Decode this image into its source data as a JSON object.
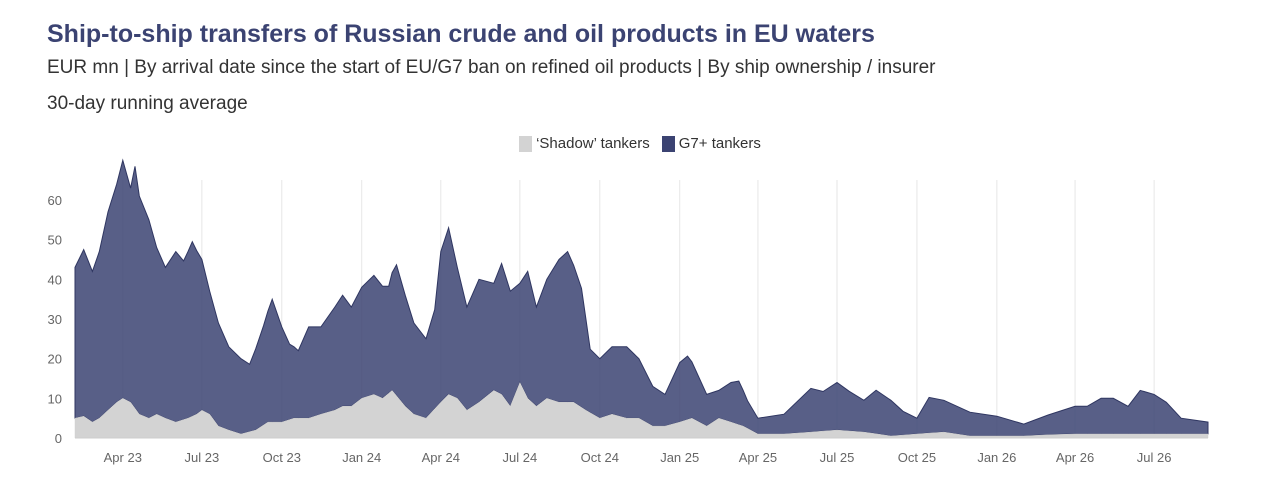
{
  "title": "Ship-to-ship transfers of Russian crude and oil products in EU waters",
  "subtitle": "EUR mn | By arrival date since the start of EU/G7 ban on refined oil products | By ship ownership / insurer",
  "note": "30-day running average",
  "legend": [
    {
      "name": "‘Shadow’ tankers",
      "color": "#d3d3d3"
    },
    {
      "name": "G7+ tankers",
      "color": "#3b4372"
    }
  ],
  "chart_data": {
    "type": "area",
    "stacked": true,
    "x_start": "2023-02-05",
    "x_end": "2026-09-01",
    "ylim": [
      0,
      65
    ],
    "y_ticks": [
      0,
      10,
      20,
      30,
      40,
      50,
      60
    ],
    "x_ticks": [
      {
        "date": "2023-04-01",
        "label": "Apr 23"
      },
      {
        "date": "2023-07-01",
        "label": "Jul 23"
      },
      {
        "date": "2023-10-01",
        "label": "Oct 23"
      },
      {
        "date": "2024-01-01",
        "label": "Jan 24"
      },
      {
        "date": "2024-04-01",
        "label": "Apr 24"
      },
      {
        "date": "2024-07-01",
        "label": "Jul 24"
      },
      {
        "date": "2024-10-01",
        "label": "Oct 24"
      },
      {
        "date": "2025-01-01",
        "label": "Jan 25"
      },
      {
        "date": "2025-04-01",
        "label": "Apr 25"
      },
      {
        "date": "2025-07-01",
        "label": "Jul 25"
      },
      {
        "date": "2025-10-01",
        "label": "Oct 25"
      },
      {
        "date": "2026-01-01",
        "label": "Jan 26"
      },
      {
        "date": "2026-04-01",
        "label": "Apr 26"
      },
      {
        "date": "2026-07-01",
        "label": "Jul 26"
      }
    ],
    "grid": true,
    "legend_position": "top-center",
    "series": [
      {
        "name": "‘Shadow’ tankers",
        "color": "#d3d3d3",
        "points": [
          [
            "2023-02-05",
            5
          ],
          [
            "2023-02-15",
            5.5
          ],
          [
            "2023-02-25",
            4
          ],
          [
            "2023-03-05",
            5
          ],
          [
            "2023-03-15",
            7
          ],
          [
            "2023-03-25",
            9
          ],
          [
            "2023-04-01",
            10
          ],
          [
            "2023-04-10",
            9
          ],
          [
            "2023-04-20",
            6
          ],
          [
            "2023-05-01",
            5
          ],
          [
            "2023-05-10",
            6
          ],
          [
            "2023-05-20",
            5
          ],
          [
            "2023-06-01",
            4
          ],
          [
            "2023-06-15",
            5
          ],
          [
            "2023-06-25",
            6
          ],
          [
            "2023-07-01",
            7
          ],
          [
            "2023-07-10",
            6
          ],
          [
            "2023-07-20",
            3
          ],
          [
            "2023-08-01",
            2
          ],
          [
            "2023-08-15",
            1
          ],
          [
            "2023-09-01",
            2
          ],
          [
            "2023-09-15",
            4
          ],
          [
            "2023-10-01",
            4
          ],
          [
            "2023-10-15",
            5
          ],
          [
            "2023-11-01",
            5
          ],
          [
            "2023-11-15",
            6
          ],
          [
            "2023-12-01",
            7
          ],
          [
            "2023-12-10",
            8
          ],
          [
            "2023-12-20",
            8
          ],
          [
            "2024-01-01",
            10
          ],
          [
            "2024-01-15",
            11
          ],
          [
            "2024-01-25",
            10
          ],
          [
            "2024-02-05",
            12
          ],
          [
            "2024-02-20",
            8
          ],
          [
            "2024-03-01",
            6
          ],
          [
            "2024-03-15",
            5
          ],
          [
            "2024-04-01",
            9
          ],
          [
            "2024-04-10",
            11
          ],
          [
            "2024-04-20",
            10
          ],
          [
            "2024-05-01",
            7
          ],
          [
            "2024-05-15",
            9
          ],
          [
            "2024-06-01",
            12
          ],
          [
            "2024-06-10",
            11
          ],
          [
            "2024-06-20",
            8
          ],
          [
            "2024-07-01",
            14
          ],
          [
            "2024-07-10",
            10
          ],
          [
            "2024-07-20",
            8
          ],
          [
            "2024-08-01",
            10
          ],
          [
            "2024-08-15",
            9
          ],
          [
            "2024-09-01",
            9
          ],
          [
            "2024-09-15",
            7
          ],
          [
            "2024-10-01",
            5
          ],
          [
            "2024-10-15",
            6
          ],
          [
            "2024-11-01",
            5
          ],
          [
            "2024-11-15",
            5
          ],
          [
            "2024-12-01",
            3
          ],
          [
            "2024-12-15",
            3
          ],
          [
            "2025-01-01",
            4
          ],
          [
            "2025-01-15",
            5
          ],
          [
            "2025-02-01",
            3
          ],
          [
            "2025-02-15",
            5
          ],
          [
            "2025-03-01",
            4
          ],
          [
            "2025-03-15",
            3
          ],
          [
            "2025-04-01",
            1
          ],
          [
            "2025-05-01",
            1
          ],
          [
            "2025-06-01",
            1.5
          ],
          [
            "2025-07-01",
            2
          ],
          [
            "2025-08-01",
            1.5
          ],
          [
            "2025-09-01",
            0.5
          ],
          [
            "2025-10-01",
            1
          ],
          [
            "2025-11-01",
            1.5
          ],
          [
            "2025-12-01",
            0.5
          ],
          [
            "2026-01-01",
            0.5
          ],
          [
            "2026-02-01",
            0.5
          ],
          [
            "2026-03-01",
            0.8
          ],
          [
            "2026-04-01",
            1
          ],
          [
            "2026-05-01",
            1
          ],
          [
            "2026-06-01",
            1
          ],
          [
            "2026-07-01",
            1
          ],
          [
            "2026-08-01",
            1
          ],
          [
            "2026-09-01",
            1
          ]
        ]
      },
      {
        "name": "G7+ tankers",
        "color": "#3b4372",
        "points": [
          [
            "2023-02-05",
            38
          ],
          [
            "2023-02-15",
            42
          ],
          [
            "2023-02-25",
            38
          ],
          [
            "2023-03-05",
            42
          ],
          [
            "2023-03-15",
            50
          ],
          [
            "2023-03-25",
            55
          ],
          [
            "2023-04-01",
            60
          ],
          [
            "2023-04-10",
            54
          ],
          [
            "2023-04-15",
            61
          ],
          [
            "2023-04-20",
            55
          ],
          [
            "2023-05-01",
            50
          ],
          [
            "2023-05-10",
            42
          ],
          [
            "2023-05-20",
            38
          ],
          [
            "2023-06-01",
            43
          ],
          [
            "2023-06-10",
            40
          ],
          [
            "2023-06-20",
            44
          ],
          [
            "2023-07-01",
            38
          ],
          [
            "2023-07-10",
            31
          ],
          [
            "2023-07-20",
            26
          ],
          [
            "2023-08-01",
            21
          ],
          [
            "2023-08-15",
            19
          ],
          [
            "2023-08-25",
            17
          ],
          [
            "2023-09-10",
            25
          ],
          [
            "2023-09-20",
            31
          ],
          [
            "2023-10-01",
            24
          ],
          [
            "2023-10-10",
            19
          ],
          [
            "2023-10-20",
            17
          ],
          [
            "2023-11-01",
            23
          ],
          [
            "2023-11-15",
            22
          ],
          [
            "2023-12-01",
            26
          ],
          [
            "2023-12-10",
            28
          ],
          [
            "2023-12-20",
            25
          ],
          [
            "2024-01-01",
            28
          ],
          [
            "2024-01-15",
            30
          ],
          [
            "2024-02-01",
            27
          ],
          [
            "2024-02-10",
            33
          ],
          [
            "2024-02-20",
            28
          ],
          [
            "2024-03-01",
            23
          ],
          [
            "2024-03-15",
            20
          ],
          [
            "2024-03-25",
            25
          ],
          [
            "2024-04-01",
            38
          ],
          [
            "2024-04-10",
            42
          ],
          [
            "2024-04-20",
            33
          ],
          [
            "2024-05-01",
            26
          ],
          [
            "2024-05-15",
            31
          ],
          [
            "2024-06-01",
            27
          ],
          [
            "2024-06-10",
            33
          ],
          [
            "2024-06-20",
            29
          ],
          [
            "2024-07-01",
            25
          ],
          [
            "2024-07-10",
            32
          ],
          [
            "2024-07-20",
            25
          ],
          [
            "2024-08-01",
            30
          ],
          [
            "2024-08-15",
            36
          ],
          [
            "2024-08-25",
            38
          ],
          [
            "2024-09-10",
            30
          ],
          [
            "2024-09-20",
            16
          ],
          [
            "2024-10-01",
            15
          ],
          [
            "2024-10-15",
            17
          ],
          [
            "2024-11-01",
            18
          ],
          [
            "2024-11-15",
            15
          ],
          [
            "2024-12-01",
            10
          ],
          [
            "2024-12-15",
            8
          ],
          [
            "2025-01-01",
            15
          ],
          [
            "2025-01-10",
            16
          ],
          [
            "2025-02-01",
            8
          ],
          [
            "2025-02-15",
            7
          ],
          [
            "2025-03-01",
            10
          ],
          [
            "2025-03-10",
            11
          ],
          [
            "2025-03-20",
            7
          ],
          [
            "2025-04-01",
            4
          ],
          [
            "2025-05-01",
            5
          ],
          [
            "2025-06-01",
            11
          ],
          [
            "2025-06-15",
            10
          ],
          [
            "2025-07-01",
            12
          ],
          [
            "2025-07-15",
            10
          ],
          [
            "2025-08-01",
            8
          ],
          [
            "2025-08-15",
            11
          ],
          [
            "2025-09-01",
            9
          ],
          [
            "2025-09-15",
            6
          ],
          [
            "2025-10-01",
            4
          ],
          [
            "2025-10-15",
            9
          ],
          [
            "2025-11-01",
            8
          ],
          [
            "2025-12-01",
            6
          ],
          [
            "2026-01-01",
            5
          ],
          [
            "2026-02-01",
            3
          ],
          [
            "2026-03-01",
            5
          ],
          [
            "2026-04-01",
            7
          ],
          [
            "2026-04-15",
            7
          ],
          [
            "2026-05-01",
            9
          ],
          [
            "2026-05-15",
            9
          ],
          [
            "2026-06-01",
            7
          ],
          [
            "2026-06-15",
            11
          ],
          [
            "2026-07-01",
            10
          ],
          [
            "2026-07-15",
            8
          ],
          [
            "2026-08-01",
            4
          ],
          [
            "2026-09-01",
            3
          ]
        ]
      }
    ]
  }
}
